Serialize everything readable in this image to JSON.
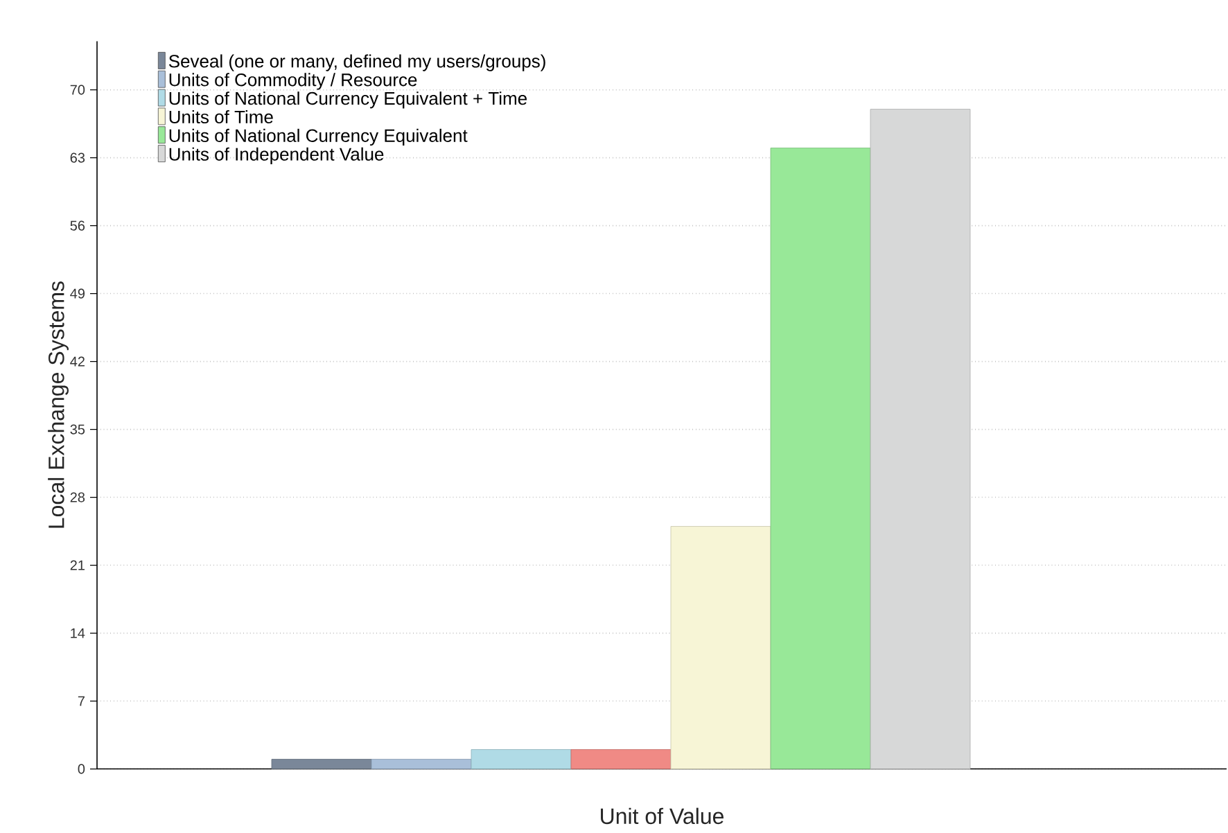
{
  "chart_data": {
    "type": "bar",
    "xlabel": "Unit of Value",
    "ylabel": "Local Exchange Systems",
    "categories": [
      null
    ],
    "series": [
      {
        "name": "Seveal (one or many, defined my users/groups)",
        "color": "#7a8799",
        "values": [
          1
        ]
      },
      {
        "name": "Units of Commodity / Resource",
        "color": "#a9bfd9",
        "values": [
          1
        ]
      },
      {
        "name": "Units of National Currency Equivalent + Time",
        "color": "#b0dbe6",
        "values": [
          2
        ]
      },
      {
        "color": "#f08a85",
        "values": [
          2
        ]
      },
      {
        "name": "Units of Time",
        "color": "#f7f5d6",
        "values": [
          25
        ]
      },
      {
        "name": "Units of National Currency Equivalent",
        "color": "#98e898",
        "values": [
          64
        ]
      },
      {
        "name": "Units of Independent Value",
        "color": "#d7d8d8",
        "values": [
          68
        ]
      }
    ],
    "ylim": [
      0,
      75
    ],
    "yticks": [
      0,
      7,
      14,
      21,
      28,
      35,
      42,
      49,
      56,
      63,
      70
    ],
    "grid": "y",
    "legend": "top left"
  }
}
